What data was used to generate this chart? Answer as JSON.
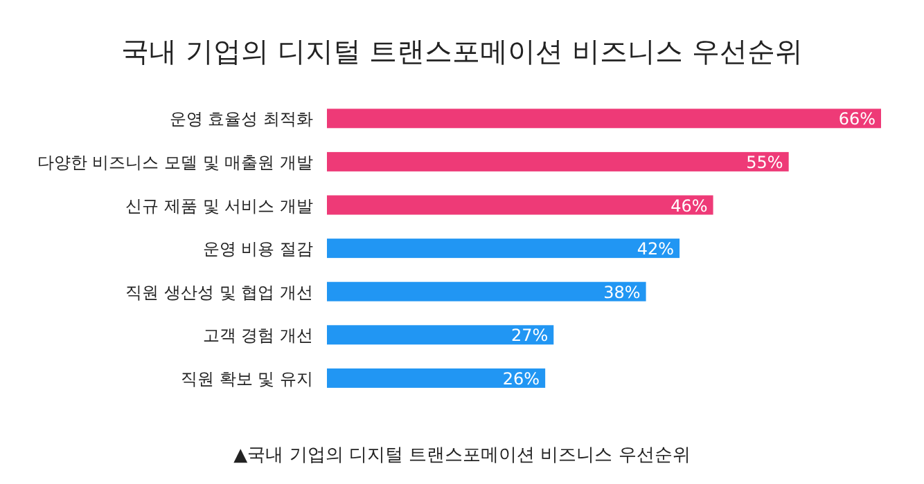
{
  "chart_data": {
    "type": "bar",
    "orientation": "horizontal",
    "title": "국내 기업의 디지털 트랜스포메이션 비즈니스 우선순위",
    "categories": [
      "운영 효율성 최적화",
      "다양한 비즈니스 모델 및 매출원 개발",
      "신규 제품 및 서비스 개발",
      "운영 비용 절감",
      "직원 생산성 및 협업 개선",
      "고객 경험 개선",
      "직원 확보 및 유지"
    ],
    "values": [
      66,
      55,
      46,
      42,
      38,
      27,
      26
    ],
    "colors": [
      "#ee3a77",
      "#ee3a77",
      "#ee3a77",
      "#2196f3",
      "#2196f3",
      "#2196f3",
      "#2196f3"
    ],
    "value_labels": [
      "66%",
      "55%",
      "46%",
      "42%",
      "38%",
      "27%",
      "26%"
    ],
    "annotations": [
      "▲국내 기업의 디지털 트랜스포메이션 비즈니스 우선순위"
    ]
  }
}
